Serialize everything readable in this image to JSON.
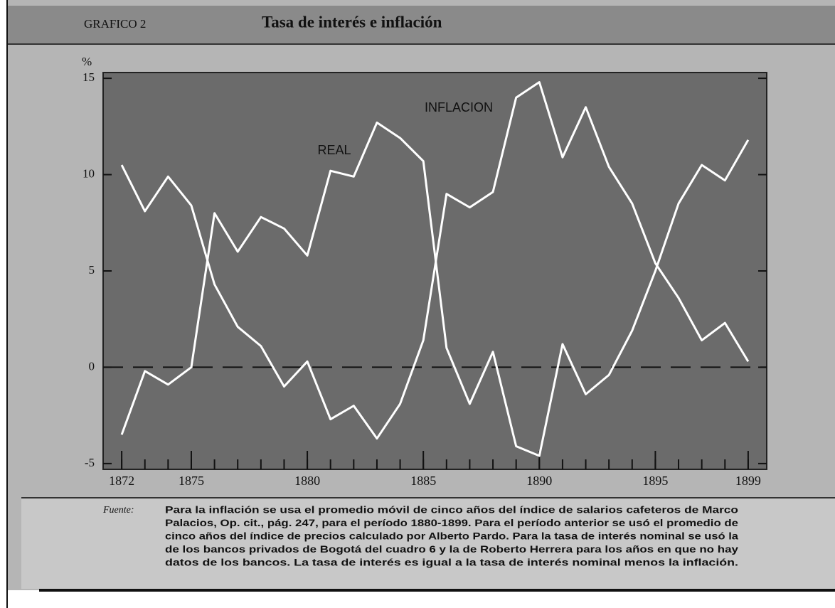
{
  "header": {
    "label": "GRAFICO 2",
    "title": "Tasa de interés e inflación"
  },
  "chart_data": {
    "type": "line",
    "y_unit": "%",
    "x": [
      1872,
      1873,
      1874,
      1875,
      1876,
      1877,
      1878,
      1879,
      1880,
      1881,
      1882,
      1883,
      1884,
      1885,
      1886,
      1887,
      1888,
      1889,
      1890,
      1891,
      1892,
      1893,
      1894,
      1895,
      1896,
      1897,
      1898,
      1899
    ],
    "series": [
      {
        "name": "REAL",
        "color": "#ffffff",
        "values": [
          -3.5,
          -0.2,
          -0.9,
          0,
          8,
          6,
          7.8,
          7.2,
          5.8,
          10.2,
          9.9,
          12.7,
          11.9,
          10.7,
          1,
          -1.9,
          0.8,
          -4.1,
          -4.6,
          1.2,
          -1.4,
          -0.4,
          1.9,
          5,
          8.5,
          10.5,
          9.7,
          11.8
        ]
      },
      {
        "name": "INFLACION",
        "color": "#ffffff",
        "values": [
          10.5,
          8.1,
          9.9,
          8.4,
          4.3,
          2.1,
          1.1,
          -1,
          0.3,
          -2.7,
          -2,
          -3.7,
          -1.9,
          1.4,
          9,
          8.3,
          9.1,
          14,
          14.8,
          10.9,
          13.5,
          10.4,
          8.5,
          5.4,
          3.6,
          1.4,
          2.3,
          0.3
        ]
      }
    ],
    "xlim": [
      1871.2,
      1899.8
    ],
    "xticks": [
      1872,
      1875,
      1880,
      1885,
      1890,
      1895,
      1899
    ],
    "ylim": [
      -5.3,
      15.3
    ],
    "yticks": [
      -5,
      0,
      5,
      10,
      15
    ],
    "reference_lines": [
      0
    ]
  },
  "source": {
    "label": "Fuente:",
    "lines": [
      "Para la inflación se usa el promedio móvil de cinco años del índice de salarios cafeteros de Marco",
      "Palacios, Op. cit., pág. 247, para el período 1880-1899. Para el período anterior se usó el promedio de",
      "cinco años del índice de precios calculado por Alberto Pardo. Para la tasa de interés nominal se usó la",
      "de los bancos privados de Bogotá del cuadro 6 y la de Roberto Herrera para los años en que no hay",
      "datos de los bancos. La tasa de interés es igual a la tasa de interés nominal menos la inflación."
    ]
  }
}
